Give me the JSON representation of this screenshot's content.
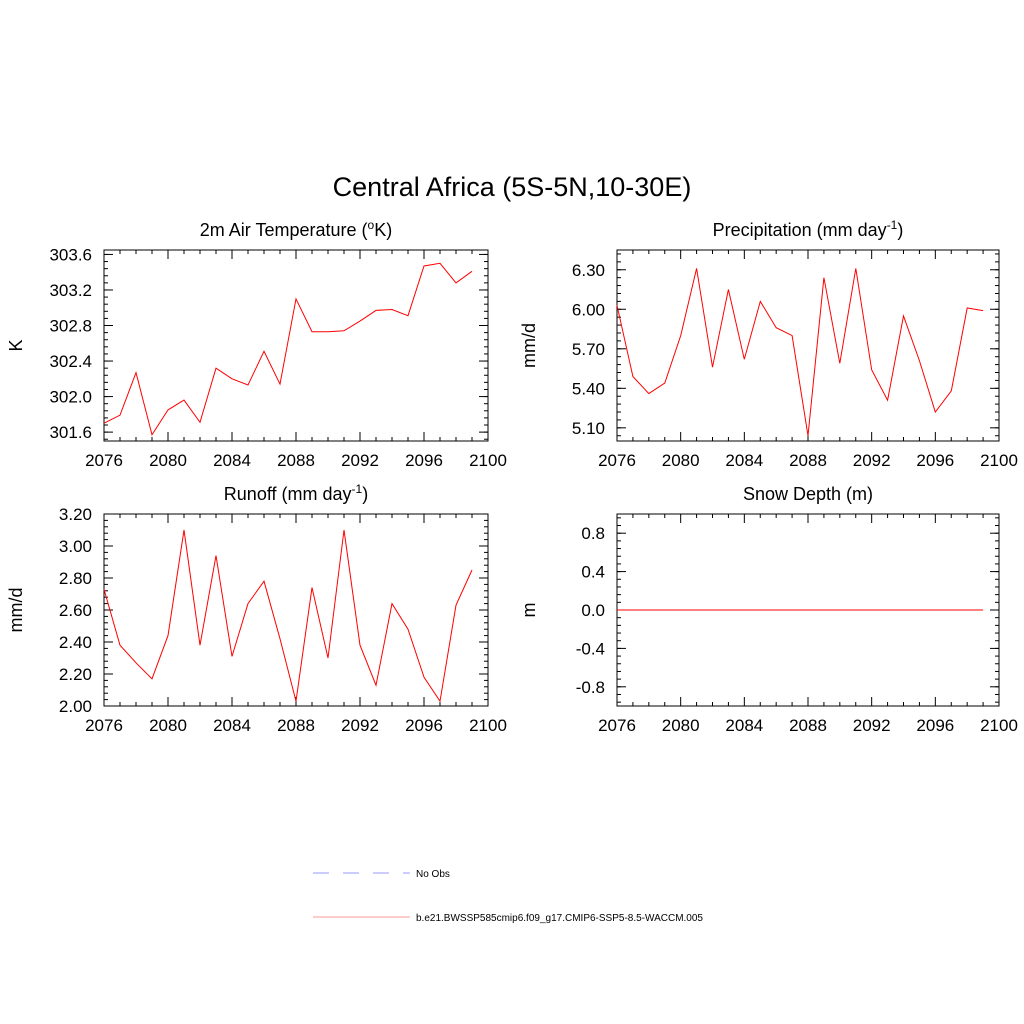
{
  "figure_title": "Central Africa (5S-5N,10-30E)",
  "legend": [
    {
      "label": "No Obs",
      "color": "#9999ff",
      "dash": "dashed"
    },
    {
      "label": "b.e21.BWSSP585cmip6.f09_g17.CMIP6-SSP5-8.5-WACCM.005",
      "color": "#ff9999",
      "dash": "solid"
    }
  ],
  "colors": {
    "series": "#ff0000"
  },
  "chart_data": [
    {
      "type": "line",
      "title": "2m Air Temperature (",
      "title_sup": "o",
      "title_after": "K)",
      "xlabel": "",
      "ylabel": "K",
      "xlim": [
        2076,
        2100
      ],
      "ylim": [
        301.5,
        303.65
      ],
      "xticks": [
        2076,
        2080,
        2084,
        2088,
        2092,
        2096,
        2100
      ],
      "yticks": [
        301.6,
        302.0,
        302.4,
        302.8,
        303.2,
        303.6
      ],
      "ytick_labels": [
        "301.6",
        "302.0",
        "302.4",
        "302.8",
        "303.2",
        "303.6"
      ],
      "grid": false,
      "x": [
        2076,
        2077,
        2078,
        2079,
        2080,
        2081,
        2082,
        2083,
        2084,
        2085,
        2086,
        2087,
        2088,
        2089,
        2090,
        2091,
        2092,
        2093,
        2094,
        2095,
        2096,
        2097,
        2098,
        2099
      ],
      "series": [
        {
          "values": [
            301.7,
            301.79,
            302.27,
            301.57,
            301.85,
            301.96,
            301.71,
            302.32,
            302.2,
            302.13,
            302.51,
            302.14,
            303.1,
            302.73,
            302.73,
            302.74,
            302.85,
            302.97,
            302.98,
            302.91,
            303.47,
            303.5,
            303.28,
            303.41
          ]
        }
      ]
    },
    {
      "type": "line",
      "title": "Precipitation (mm day",
      "title_sup": "-1",
      "title_after": ")",
      "xlabel": "",
      "ylabel": "mm/d",
      "xlim": [
        2076,
        2100
      ],
      "ylim": [
        5.0,
        6.45
      ],
      "xticks": [
        2076,
        2080,
        2084,
        2088,
        2092,
        2096,
        2100
      ],
      "yticks": [
        5.1,
        5.4,
        5.7,
        6.0,
        6.3
      ],
      "ytick_labels": [
        "5.10",
        "5.40",
        "5.70",
        "6.00",
        "6.30"
      ],
      "grid": false,
      "x": [
        2076,
        2077,
        2078,
        2079,
        2080,
        2081,
        2082,
        2083,
        2084,
        2085,
        2086,
        2087,
        2088,
        2089,
        2090,
        2091,
        2092,
        2093,
        2094,
        2095,
        2096,
        2097,
        2098,
        2099
      ],
      "series": [
        {
          "values": [
            6.03,
            5.49,
            5.36,
            5.44,
            5.8,
            6.31,
            5.56,
            6.15,
            5.62,
            6.06,
            5.86,
            5.8,
            5.04,
            6.24,
            5.59,
            6.31,
            5.54,
            5.31,
            5.95,
            5.61,
            5.22,
            5.38,
            6.01,
            5.99
          ]
        }
      ]
    },
    {
      "type": "line",
      "title": "Runoff (mm day",
      "title_sup": "-1",
      "title_after": ")",
      "xlabel": "",
      "ylabel": "mm/d",
      "xlim": [
        2076,
        2100
      ],
      "ylim": [
        2.0,
        3.2
      ],
      "xticks": [
        2076,
        2080,
        2084,
        2088,
        2092,
        2096,
        2100
      ],
      "yticks": [
        2.0,
        2.2,
        2.4,
        2.6,
        2.8,
        3.0,
        3.2
      ],
      "ytick_labels": [
        "2.00",
        "2.20",
        "2.40",
        "2.60",
        "2.80",
        "3.00",
        "3.20"
      ],
      "grid": false,
      "x": [
        2076,
        2077,
        2078,
        2079,
        2080,
        2081,
        2082,
        2083,
        2084,
        2085,
        2086,
        2087,
        2088,
        2089,
        2090,
        2091,
        2092,
        2093,
        2094,
        2095,
        2096,
        2097,
        2098,
        2099
      ],
      "series": [
        {
          "values": [
            2.73,
            2.38,
            2.27,
            2.17,
            2.44,
            3.1,
            2.38,
            2.94,
            2.31,
            2.64,
            2.78,
            2.42,
            2.03,
            2.74,
            2.3,
            3.1,
            2.38,
            2.13,
            2.64,
            2.48,
            2.18,
            2.03,
            2.63,
            2.85
          ]
        }
      ]
    },
    {
      "type": "line",
      "title": "Snow Depth (m)",
      "title_sup": "",
      "title_after": "",
      "xlabel": "",
      "ylabel": "m",
      "xlim": [
        2076,
        2100
      ],
      "ylim": [
        -1.0,
        1.0
      ],
      "xticks": [
        2076,
        2080,
        2084,
        2088,
        2092,
        2096,
        2100
      ],
      "yticks": [
        -0.8,
        -0.4,
        0.0,
        0.4,
        0.8
      ],
      "ytick_labels": [
        "-0.8",
        "-0.4",
        "0.0",
        "0.4",
        "0.8"
      ],
      "grid": false,
      "x": [
        2076,
        2077,
        2078,
        2079,
        2080,
        2081,
        2082,
        2083,
        2084,
        2085,
        2086,
        2087,
        2088,
        2089,
        2090,
        2091,
        2092,
        2093,
        2094,
        2095,
        2096,
        2097,
        2098,
        2099
      ],
      "series": [
        {
          "values": [
            0,
            0,
            0,
            0,
            0,
            0,
            0,
            0,
            0,
            0,
            0,
            0,
            0,
            0,
            0,
            0,
            0,
            0,
            0,
            0,
            0,
            0,
            0,
            0
          ]
        }
      ]
    }
  ]
}
